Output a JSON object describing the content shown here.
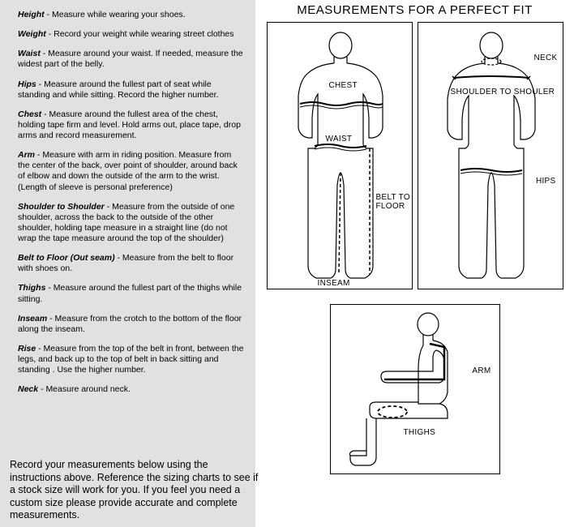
{
  "title": "MEASUREMENTS FOR A PERFECT FIT",
  "instructions": [
    {
      "term": "Height",
      "text": " - Measure while wearing your shoes."
    },
    {
      "term": "Weight",
      "text": " - Record your weight while wearing street clothes"
    },
    {
      "term": "Waist",
      "text": " - Measure around your waist.  If needed, measure the widest part of the belly."
    },
    {
      "term": "Hips",
      "text": " - Measure around the fullest part of seat while standing and while sitting. Record the higher number."
    },
    {
      "term": "Chest",
      "text": " - Measure around the fullest area of the chest, holding tape firm and level. Hold arms out, place tape, drop arms and record measurement."
    },
    {
      "term": "Arm",
      "text": " - Measure with arm in riding position. Measure from the center of the back, over point of shoulder, around back of elbow and down the outside of the arm to the wrist. (Length of sleeve is  personal preference)"
    },
    {
      "term": "Shoulder to Shoulder",
      "text": " - Measure from the outside of one shoulder, across the back to the outside of the other shoulder, holding tape measure in a straight  line (do not wrap the tape measure around the top of the shoulder)"
    },
    {
      "term": "Belt to Floor (Out seam)",
      "text": " - Measure from the belt to floor with shoes on."
    },
    {
      "term": "Thighs",
      "text": " - Measure around the fullest  part of the thighs while sitting."
    },
    {
      "term": "Inseam",
      "text": " - Measure from the crotch to the bottom of the floor along the inseam."
    },
    {
      "term": "Rise",
      "text": " - Measure from the top of the belt in front, between the legs, and back up to the top of belt in back sitting and standing . Use the higher number."
    },
    {
      "term": "Neck",
      "text": " - Measure around neck."
    }
  ],
  "bottom_note": "Record your measurements below using the instructions above. Reference the sizing charts to see if a stock size will work for you. If you feel you need a custom size please provide accurate and complete measurements.",
  "labels": {
    "chest": "CHEST",
    "waist": "WAIST",
    "inseam": "INSEAM",
    "belt_to_floor": "BELT TO\nFLOOR",
    "neck": "NECK",
    "shoulder_to_shoulder": "SHOULDER TO SHOULER",
    "hips": "HIPS",
    "arm": "ARM",
    "thighs": "THIGHS"
  },
  "colors": {
    "panel_bg": "#e1e1e1",
    "stroke": "#000000",
    "page_bg": "#ffffff"
  }
}
